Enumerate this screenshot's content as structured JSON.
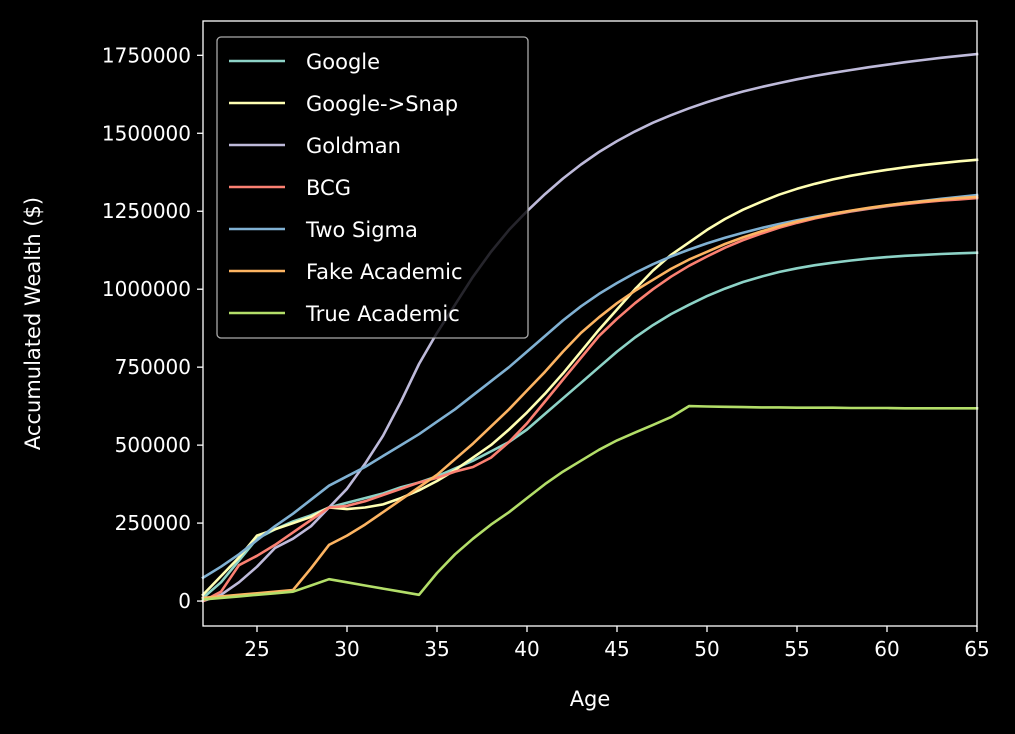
{
  "chart_data": {
    "type": "line",
    "title": "",
    "xlabel": "Age",
    "ylabel": "Accumulated Wealth ($)",
    "xlim": [
      22,
      65
    ],
    "ylim": [
      -80000,
      1860000
    ],
    "x_ticks": [
      25,
      30,
      35,
      40,
      45,
      50,
      55,
      60,
      65
    ],
    "y_ticks": [
      0,
      250000,
      500000,
      750000,
      1000000,
      1250000,
      1500000,
      1750000
    ],
    "grid": false,
    "legend_position": "top-left",
    "background": "#000000",
    "axis_color": "#ffffff",
    "series": [
      {
        "name": "Google",
        "color": "#8dd3c7",
        "points": [
          [
            22,
            10000
          ],
          [
            23,
            60000
          ],
          [
            24,
            130000
          ],
          [
            25,
            200000
          ],
          [
            26,
            230000
          ],
          [
            27,
            255000
          ],
          [
            28,
            275000
          ],
          [
            29,
            300000
          ],
          [
            30,
            315000
          ],
          [
            31,
            330000
          ],
          [
            32,
            345000
          ],
          [
            33,
            365000
          ],
          [
            34,
            380000
          ],
          [
            35,
            400000
          ],
          [
            36,
            425000
          ],
          [
            37,
            450000
          ],
          [
            38,
            480000
          ],
          [
            39,
            510000
          ],
          [
            40,
            550000
          ],
          [
            41,
            600000
          ],
          [
            42,
            650000
          ],
          [
            43,
            700000
          ],
          [
            44,
            750000
          ],
          [
            45,
            800000
          ],
          [
            46,
            845000
          ],
          [
            47,
            885000
          ],
          [
            48,
            920000
          ],
          [
            49,
            950000
          ],
          [
            50,
            978000
          ],
          [
            51,
            1002000
          ],
          [
            52,
            1023000
          ],
          [
            53,
            1040000
          ],
          [
            54,
            1055000
          ],
          [
            55,
            1067000
          ],
          [
            56,
            1077000
          ],
          [
            57,
            1085000
          ],
          [
            58,
            1092000
          ],
          [
            59,
            1098000
          ],
          [
            60,
            1103000
          ],
          [
            61,
            1107000
          ],
          [
            62,
            1110000
          ],
          [
            63,
            1113000
          ],
          [
            64,
            1115000
          ],
          [
            65,
            1117000
          ]
        ]
      },
      {
        "name": "Google->Snap",
        "color": "#ffffb3",
        "points": [
          [
            22,
            20000
          ],
          [
            23,
            80000
          ],
          [
            24,
            140000
          ],
          [
            25,
            210000
          ],
          [
            26,
            230000
          ],
          [
            27,
            250000
          ],
          [
            28,
            270000
          ],
          [
            29,
            300000
          ],
          [
            30,
            295000
          ],
          [
            31,
            300000
          ],
          [
            32,
            310000
          ],
          [
            33,
            330000
          ],
          [
            34,
            355000
          ],
          [
            35,
            385000
          ],
          [
            36,
            420000
          ],
          [
            37,
            460000
          ],
          [
            38,
            500000
          ],
          [
            39,
            550000
          ],
          [
            40,
            605000
          ],
          [
            41,
            665000
          ],
          [
            42,
            730000
          ],
          [
            43,
            800000
          ],
          [
            44,
            870000
          ],
          [
            45,
            935000
          ],
          [
            46,
            1000000
          ],
          [
            47,
            1060000
          ],
          [
            48,
            1110000
          ],
          [
            49,
            1150000
          ],
          [
            50,
            1190000
          ],
          [
            51,
            1225000
          ],
          [
            52,
            1255000
          ],
          [
            53,
            1280000
          ],
          [
            54,
            1303000
          ],
          [
            55,
            1322000
          ],
          [
            56,
            1338000
          ],
          [
            57,
            1352000
          ],
          [
            58,
            1364000
          ],
          [
            59,
            1374000
          ],
          [
            60,
            1383000
          ],
          [
            61,
            1391000
          ],
          [
            62,
            1398000
          ],
          [
            63,
            1404000
          ],
          [
            64,
            1410000
          ],
          [
            65,
            1415000
          ]
        ]
      },
      {
        "name": "Goldman",
        "color": "#bebada",
        "points": [
          [
            22,
            0
          ],
          [
            23,
            20000
          ],
          [
            24,
            60000
          ],
          [
            25,
            110000
          ],
          [
            26,
            170000
          ],
          [
            27,
            200000
          ],
          [
            28,
            240000
          ],
          [
            29,
            300000
          ],
          [
            30,
            360000
          ],
          [
            31,
            440000
          ],
          [
            32,
            530000
          ],
          [
            33,
            640000
          ],
          [
            34,
            760000
          ],
          [
            35,
            860000
          ],
          [
            36,
            950000
          ],
          [
            37,
            1040000
          ],
          [
            38,
            1120000
          ],
          [
            39,
            1190000
          ],
          [
            40,
            1250000
          ],
          [
            41,
            1305000
          ],
          [
            42,
            1355000
          ],
          [
            43,
            1400000
          ],
          [
            44,
            1440000
          ],
          [
            45,
            1475000
          ],
          [
            46,
            1506000
          ],
          [
            47,
            1534000
          ],
          [
            48,
            1558000
          ],
          [
            49,
            1580000
          ],
          [
            50,
            1600000
          ],
          [
            51,
            1618000
          ],
          [
            52,
            1634000
          ],
          [
            53,
            1648000
          ],
          [
            54,
            1661000
          ],
          [
            55,
            1673000
          ],
          [
            56,
            1684000
          ],
          [
            57,
            1694000
          ],
          [
            58,
            1703000
          ],
          [
            59,
            1712000
          ],
          [
            60,
            1720000
          ],
          [
            61,
            1728000
          ],
          [
            62,
            1735000
          ],
          [
            63,
            1742000
          ],
          [
            64,
            1748000
          ],
          [
            65,
            1754000
          ]
        ]
      },
      {
        "name": "BCG",
        "color": "#fb8072",
        "points": [
          [
            22,
            0
          ],
          [
            23,
            30000
          ],
          [
            24,
            115000
          ],
          [
            25,
            145000
          ],
          [
            26,
            180000
          ],
          [
            27,
            220000
          ],
          [
            28,
            260000
          ],
          [
            29,
            300000
          ],
          [
            30,
            305000
          ],
          [
            31,
            320000
          ],
          [
            32,
            340000
          ],
          [
            33,
            360000
          ],
          [
            34,
            380000
          ],
          [
            35,
            395000
          ],
          [
            36,
            415000
          ],
          [
            37,
            430000
          ],
          [
            38,
            460000
          ],
          [
            39,
            510000
          ],
          [
            40,
            570000
          ],
          [
            41,
            640000
          ],
          [
            42,
            710000
          ],
          [
            43,
            780000
          ],
          [
            44,
            850000
          ],
          [
            45,
            905000
          ],
          [
            46,
            955000
          ],
          [
            47,
            1000000
          ],
          [
            48,
            1040000
          ],
          [
            49,
            1075000
          ],
          [
            50,
            1105000
          ],
          [
            51,
            1133000
          ],
          [
            52,
            1157000
          ],
          [
            53,
            1178000
          ],
          [
            54,
            1197000
          ],
          [
            55,
            1213000
          ],
          [
            56,
            1227000
          ],
          [
            57,
            1239000
          ],
          [
            58,
            1249000
          ],
          [
            59,
            1258000
          ],
          [
            60,
            1266000
          ],
          [
            61,
            1273000
          ],
          [
            62,
            1279000
          ],
          [
            63,
            1284000
          ],
          [
            64,
            1288000
          ],
          [
            65,
            1292000
          ]
        ]
      },
      {
        "name": "Two Sigma",
        "color": "#80b1d3",
        "points": [
          [
            22,
            75000
          ],
          [
            23,
            110000
          ],
          [
            24,
            150000
          ],
          [
            25,
            195000
          ],
          [
            26,
            240000
          ],
          [
            27,
            280000
          ],
          [
            28,
            325000
          ],
          [
            29,
            370000
          ],
          [
            30,
            400000
          ],
          [
            31,
            430000
          ],
          [
            32,
            465000
          ],
          [
            33,
            500000
          ],
          [
            34,
            535000
          ],
          [
            35,
            575000
          ],
          [
            36,
            615000
          ],
          [
            37,
            660000
          ],
          [
            38,
            705000
          ],
          [
            39,
            750000
          ],
          [
            40,
            800000
          ],
          [
            41,
            850000
          ],
          [
            42,
            900000
          ],
          [
            43,
            945000
          ],
          [
            44,
            985000
          ],
          [
            45,
            1020000
          ],
          [
            46,
            1052000
          ],
          [
            47,
            1080000
          ],
          [
            48,
            1105000
          ],
          [
            49,
            1127000
          ],
          [
            50,
            1147000
          ],
          [
            51,
            1165000
          ],
          [
            52,
            1181000
          ],
          [
            53,
            1196000
          ],
          [
            54,
            1209000
          ],
          [
            55,
            1221000
          ],
          [
            56,
            1232000
          ],
          [
            57,
            1242000
          ],
          [
            58,
            1251000
          ],
          [
            59,
            1260000
          ],
          [
            60,
            1268000
          ],
          [
            61,
            1276000
          ],
          [
            62,
            1283000
          ],
          [
            63,
            1290000
          ],
          [
            64,
            1296000
          ],
          [
            65,
            1302000
          ]
        ]
      },
      {
        "name": "Fake Academic",
        "color": "#fdb462",
        "points": [
          [
            22,
            10000
          ],
          [
            23,
            15000
          ],
          [
            24,
            20000
          ],
          [
            25,
            25000
          ],
          [
            26,
            30000
          ],
          [
            27,
            35000
          ],
          [
            28,
            105000
          ],
          [
            29,
            180000
          ],
          [
            30,
            210000
          ],
          [
            31,
            245000
          ],
          [
            32,
            285000
          ],
          [
            33,
            325000
          ],
          [
            34,
            365000
          ],
          [
            35,
            405000
          ],
          [
            36,
            455000
          ],
          [
            37,
            505000
          ],
          [
            38,
            560000
          ],
          [
            39,
            615000
          ],
          [
            40,
            675000
          ],
          [
            41,
            735000
          ],
          [
            42,
            800000
          ],
          [
            43,
            860000
          ],
          [
            44,
            910000
          ],
          [
            45,
            955000
          ],
          [
            46,
            995000
          ],
          [
            47,
            1030000
          ],
          [
            48,
            1065000
          ],
          [
            49,
            1095000
          ],
          [
            50,
            1120000
          ],
          [
            51,
            1145000
          ],
          [
            52,
            1166000
          ],
          [
            53,
            1185000
          ],
          [
            54,
            1202000
          ],
          [
            55,
            1217000
          ],
          [
            56,
            1230000
          ],
          [
            57,
            1242000
          ],
          [
            58,
            1252000
          ],
          [
            59,
            1261000
          ],
          [
            60,
            1269000
          ],
          [
            61,
            1276000
          ],
          [
            62,
            1282000
          ],
          [
            63,
            1287000
          ],
          [
            64,
            1292000
          ],
          [
            65,
            1296000
          ]
        ]
      },
      {
        "name": "True Academic",
        "color": "#b3de69",
        "points": [
          [
            22,
            5000
          ],
          [
            23,
            10000
          ],
          [
            24,
            15000
          ],
          [
            25,
            20000
          ],
          [
            26,
            25000
          ],
          [
            27,
            30000
          ],
          [
            28,
            50000
          ],
          [
            29,
            70000
          ],
          [
            30,
            60000
          ],
          [
            31,
            50000
          ],
          [
            32,
            40000
          ],
          [
            33,
            30000
          ],
          [
            34,
            20000
          ],
          [
            35,
            90000
          ],
          [
            36,
            150000
          ],
          [
            37,
            200000
          ],
          [
            38,
            245000
          ],
          [
            39,
            285000
          ],
          [
            40,
            330000
          ],
          [
            41,
            375000
          ],
          [
            42,
            415000
          ],
          [
            43,
            450000
          ],
          [
            44,
            485000
          ],
          [
            45,
            515000
          ],
          [
            46,
            540000
          ],
          [
            47,
            565000
          ],
          [
            48,
            590000
          ],
          [
            49,
            625000
          ],
          [
            50,
            624000
          ],
          [
            51,
            623000
          ],
          [
            52,
            622000
          ],
          [
            53,
            621000
          ],
          [
            54,
            621000
          ],
          [
            55,
            620000
          ],
          [
            56,
            620000
          ],
          [
            57,
            620000
          ],
          [
            58,
            619000
          ],
          [
            59,
            619000
          ],
          [
            60,
            619000
          ],
          [
            61,
            618000
          ],
          [
            62,
            618000
          ],
          [
            63,
            618000
          ],
          [
            64,
            618000
          ],
          [
            65,
            618000
          ]
        ]
      }
    ]
  }
}
